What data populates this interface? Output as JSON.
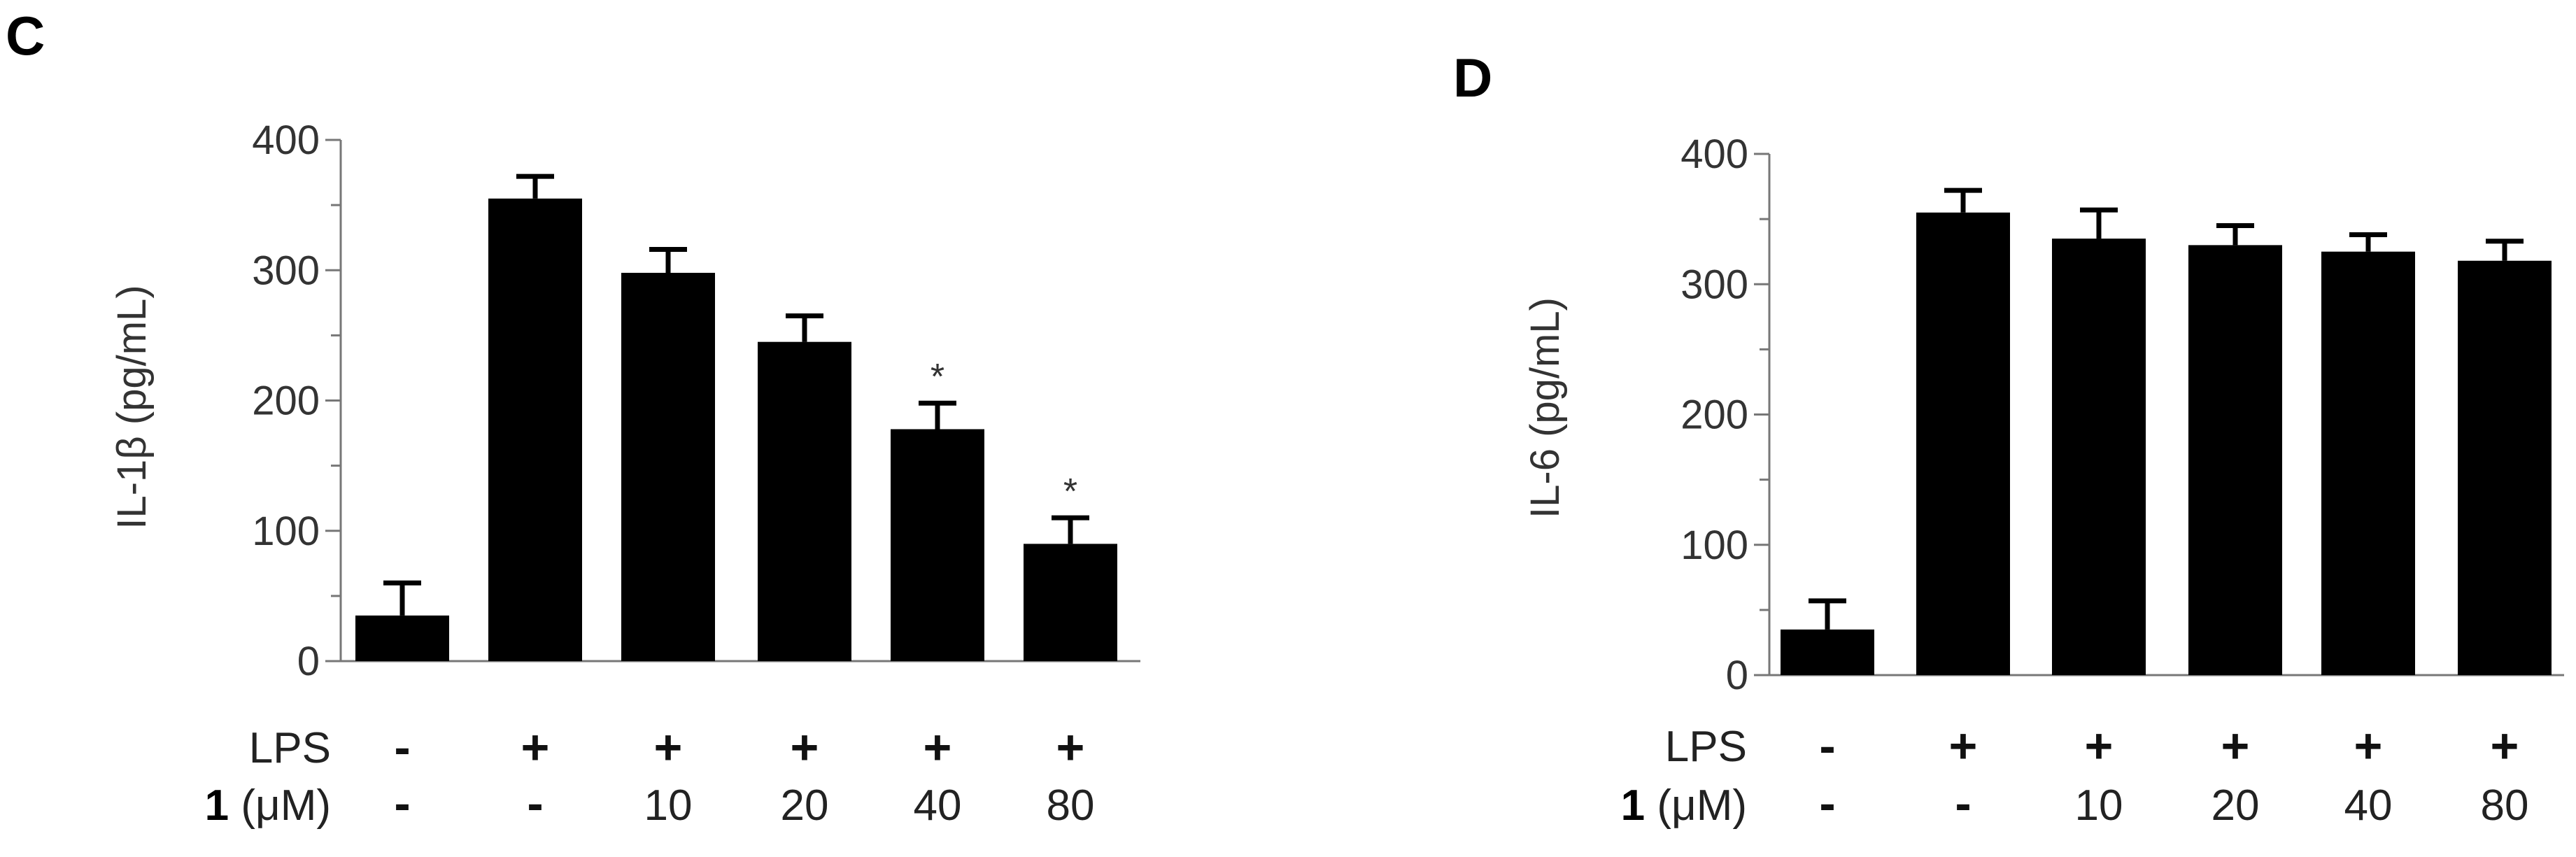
{
  "chart_data": [
    {
      "type": "bar",
      "panel_label": "C",
      "ylabel": "IL-1β (pg/mL)",
      "ylim": [
        0,
        400
      ],
      "yticks": [
        0,
        100,
        200,
        300,
        400
      ],
      "grid": false,
      "values": [
        35,
        355,
        298,
        245,
        178,
        90
      ],
      "errors": [
        25,
        17,
        18,
        20,
        20,
        20
      ],
      "annotations": [
        "",
        "",
        "",
        "",
        "*",
        "*"
      ],
      "conditions": {
        "row1_label": "LPS",
        "row1": [
          "-",
          "+",
          "+",
          "+",
          "+",
          "+"
        ],
        "row2_label_bold": "1",
        "row2_label_unit": "(μM)",
        "row2": [
          "-",
          "-",
          "10",
          "20",
          "40",
          "80"
        ]
      },
      "color": "#000000"
    },
    {
      "type": "bar",
      "panel_label": "D",
      "ylabel": "IL-6 (pg/mL)",
      "ylim": [
        0,
        400
      ],
      "yticks": [
        0,
        100,
        200,
        300,
        400
      ],
      "grid": false,
      "values": [
        35,
        355,
        335,
        330,
        325,
        318
      ],
      "errors": [
        22,
        17,
        22,
        15,
        13,
        15
      ],
      "annotations": [
        "",
        "",
        "",
        "",
        "",
        ""
      ],
      "conditions": {
        "row1_label": "LPS",
        "row1": [
          "-",
          "+",
          "+",
          "+",
          "+",
          "+"
        ],
        "row2_label_bold": "1",
        "row2_label_unit": "(μM)",
        "row2": [
          "-",
          "-",
          "10",
          "20",
          "40",
          "80"
        ]
      },
      "color": "#000000"
    }
  ]
}
